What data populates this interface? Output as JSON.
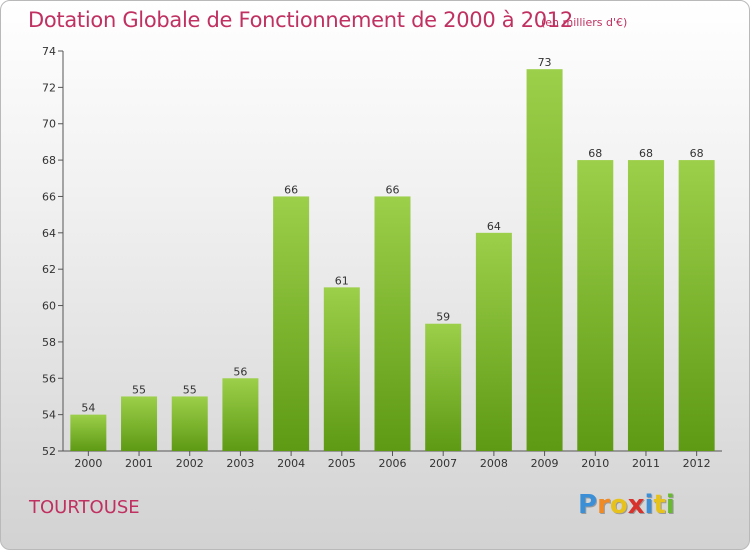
{
  "header": {
    "title": "Dotation Globale de Fonctionnement de 2000 à 2012",
    "subtitle": "(en milliers d'€)"
  },
  "footer": {
    "town": "TOURTOUSE",
    "logo_text": "Proxiti",
    "logo_letters": [
      {
        "ch": "P",
        "color": "#3b8fd6"
      },
      {
        "ch": "r",
        "color": "#f08a24"
      },
      {
        "ch": "o",
        "color": "#e7c21c"
      },
      {
        "ch": "x",
        "color": "#d8322c"
      },
      {
        "ch": "i",
        "color": "#3b8fd6"
      },
      {
        "ch": "t",
        "color": "#e7c21c"
      },
      {
        "ch": "i",
        "color": "#6ab833"
      }
    ]
  },
  "chart_data": {
    "type": "bar",
    "categories": [
      "2000",
      "2001",
      "2002",
      "2003",
      "2004",
      "2005",
      "2006",
      "2007",
      "2008",
      "2009",
      "2010",
      "2011",
      "2012"
    ],
    "values": [
      54,
      55,
      55,
      56,
      66,
      61,
      66,
      59,
      64,
      73,
      68,
      68,
      68
    ],
    "title": "Dotation Globale de Fonctionnement de 2000 à 2012",
    "subtitle": "(en milliers d'€)",
    "xlabel": "",
    "ylabel": "",
    "ylim": [
      52,
      74
    ],
    "yticks": [
      52,
      54,
      56,
      58,
      60,
      62,
      64,
      66,
      68,
      70,
      72,
      74
    ],
    "grid": false,
    "legend": "none",
    "bar_color_top": "#9ccf4a",
    "bar_color_bottom": "#5e9a14"
  }
}
